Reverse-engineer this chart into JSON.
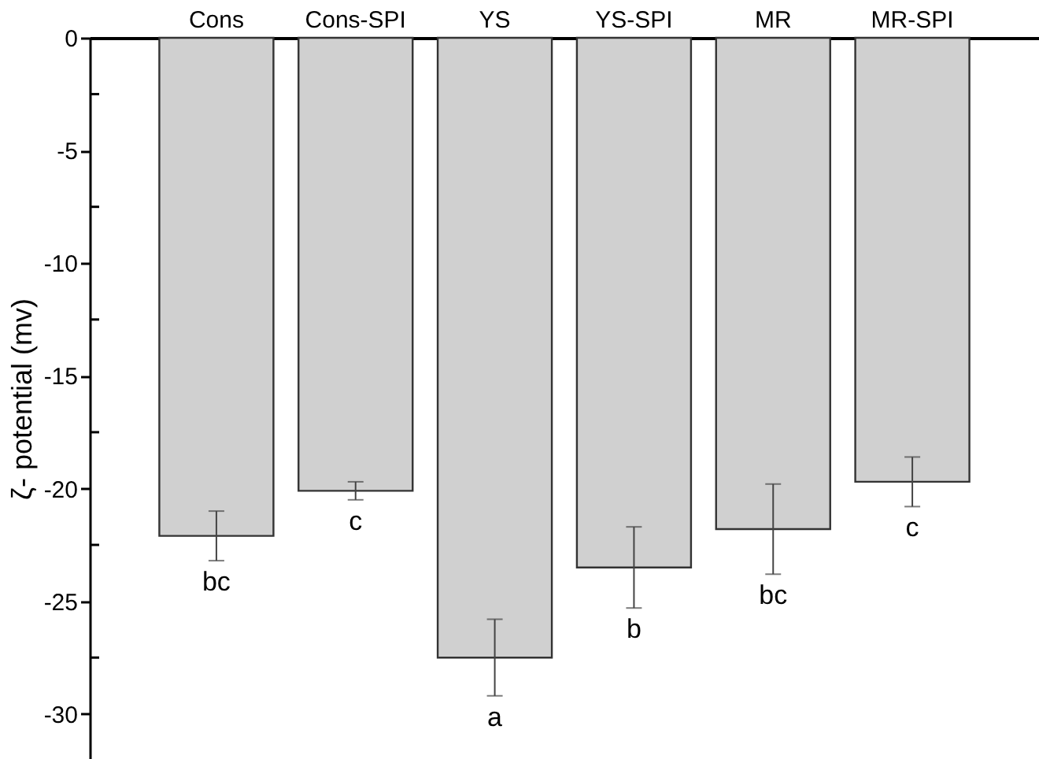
{
  "chart_data": {
    "type": "bar",
    "ylabel": "ζ- potential (mv)",
    "categories": [
      "Cons",
      "Cons-SPI",
      "YS",
      "YS-SPI",
      "MR",
      "MR-SPI"
    ],
    "values": [
      -22.1,
      -20.1,
      -27.5,
      -23.5,
      -21.8,
      -19.7
    ],
    "errors": [
      1.1,
      0.4,
      1.7,
      1.8,
      2.0,
      1.1
    ],
    "color": "#d0d0d0",
    "ylim": [
      -32,
      0
    ],
    "yticks": [
      -30,
      {
        "value": -27.5,
        "label": null
      },
      -25,
      {
        "value": -22.5,
        "label": null
      },
      -20,
      {
        "value": -17.5,
        "label": null
      },
      -15,
      {
        "value": -12.5,
        "label": null
      },
      -10,
      {
        "value": -7.5,
        "label": null
      },
      -5,
      {
        "value": -2.5,
        "label": null
      },
      0
    ],
    "annotations": [
      "bc",
      "c",
      "a",
      "b",
      "bc",
      "c"
    ],
    "grid": false
  }
}
